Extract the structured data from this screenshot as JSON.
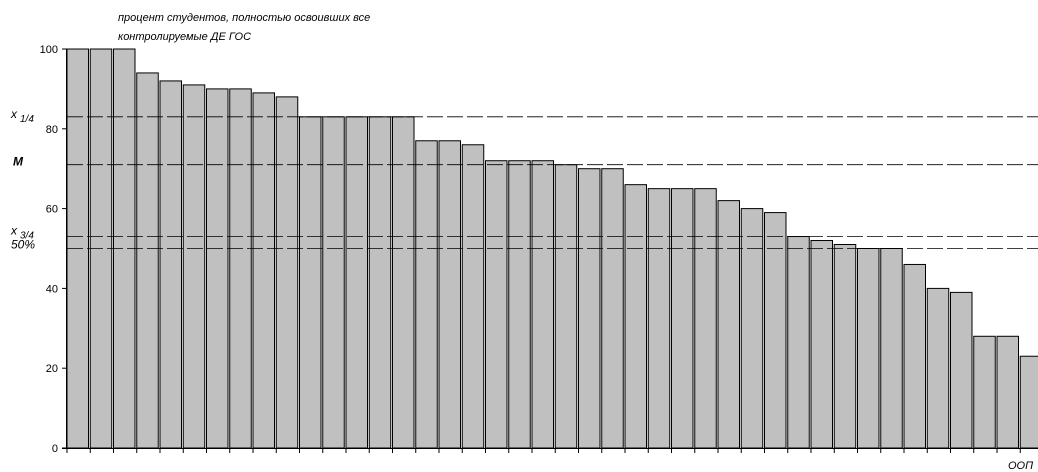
{
  "chart_data": {
    "type": "bar",
    "title_lines": [
      "процент студентов, полностью освоивших все",
      "контролируемые ДЕ ГОС"
    ],
    "xlabel": "ООП",
    "ylim": [
      0,
      100
    ],
    "yticks": [
      0,
      20,
      40,
      60,
      80,
      100
    ],
    "grid": false,
    "values": [
      100,
      100,
      100,
      94,
      92,
      91,
      90,
      90,
      89,
      88,
      83,
      83,
      83,
      83,
      83,
      77,
      77,
      76,
      72,
      72,
      72,
      71,
      70,
      70,
      66,
      65,
      65,
      65,
      62,
      60,
      59,
      53,
      52,
      51,
      50,
      50,
      46,
      40,
      39,
      28,
      28,
      23
    ],
    "reference_lines": [
      {
        "key": "q1",
        "label": "x",
        "sub": "1/4",
        "value": 83
      },
      {
        "key": "median",
        "label": "М",
        "value": 71
      },
      {
        "key": "q3",
        "label": "x",
        "sub": "3/4",
        "value": 53
      },
      {
        "key": "half",
        "label": "50%",
        "value": 50
      }
    ]
  }
}
